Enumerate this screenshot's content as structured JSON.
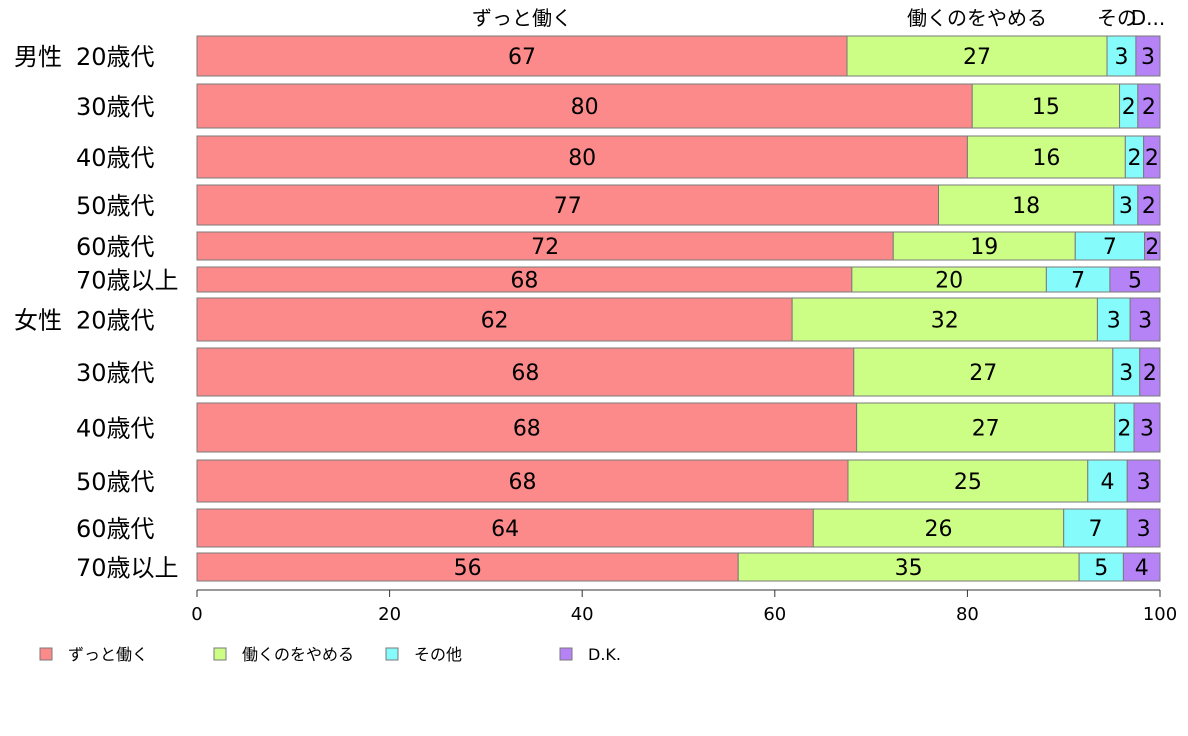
{
  "chart_data": {
    "type": "bar",
    "orientation": "horizontal",
    "stacked": true,
    "xlim": [
      0,
      100
    ],
    "x_ticks": [
      "0",
      "20",
      "40",
      "60",
      "80",
      "100"
    ],
    "top_labels": [
      "ずっと働く",
      "働くのをやめる",
      "その",
      "D..."
    ],
    "groups": [
      {
        "name": "男性",
        "row_labels": [
          "20歳代",
          "30歳代",
          "40歳代",
          "50歳代",
          "60歳代",
          "70歳以上"
        ]
      },
      {
        "name": "女性",
        "row_labels": [
          "20歳代",
          "30歳代",
          "40歳代",
          "50歳代",
          "60歳代",
          "70歳以上"
        ]
      }
    ],
    "series": [
      {
        "name": "ずっと働く",
        "color": "#fd8a8a",
        "values": [
          67.5,
          80.5,
          80,
          77,
          72.3,
          68,
          61.8,
          68.2,
          68.5,
          67.6,
          64,
          56.2
        ]
      },
      {
        "name": "働くのをやめる",
        "color": "#ccfe86",
        "values": [
          27,
          15.3,
          16.4,
          18.2,
          18.9,
          20.2,
          31.7,
          26.9,
          26.8,
          24.9,
          26,
          35.4
        ]
      },
      {
        "name": "その他",
        "color": "#86fbfb",
        "values": [
          3,
          1.9,
          1.9,
          2.5,
          7.2,
          6.6,
          3.4,
          2.8,
          2,
          4.1,
          6.6,
          4.6
        ]
      },
      {
        "name": "D.K.",
        "color": "#b683f6",
        "values": [
          2.5,
          2.3,
          1.7,
          2.3,
          1.6,
          5.2,
          3.1,
          2.1,
          2.7,
          3.4,
          3.4,
          3.8
        ]
      }
    ],
    "segment_labels": [
      [
        "67",
        "27",
        "3",
        "3"
      ],
      [
        "80",
        "15",
        "2",
        "2"
      ],
      [
        "80",
        "16",
        "2",
        "2"
      ],
      [
        "77",
        "18",
        "3",
        "2"
      ],
      [
        "72",
        "19",
        "7",
        "2"
      ],
      [
        "68",
        "20",
        "7",
        "5"
      ],
      [
        "62",
        "32",
        "3",
        "3"
      ],
      [
        "68",
        "27",
        "3",
        "2"
      ],
      [
        "68",
        "27",
        "2",
        "3"
      ],
      [
        "68",
        "25",
        "4",
        "3"
      ],
      [
        "64",
        "26",
        "7",
        "3"
      ],
      [
        "56",
        "35",
        "5",
        "4"
      ]
    ],
    "legend": [
      "ずっと働く",
      "働くのをやめる",
      "その他",
      "D.K."
    ],
    "legend_position": "bottom",
    "grid": false
  }
}
